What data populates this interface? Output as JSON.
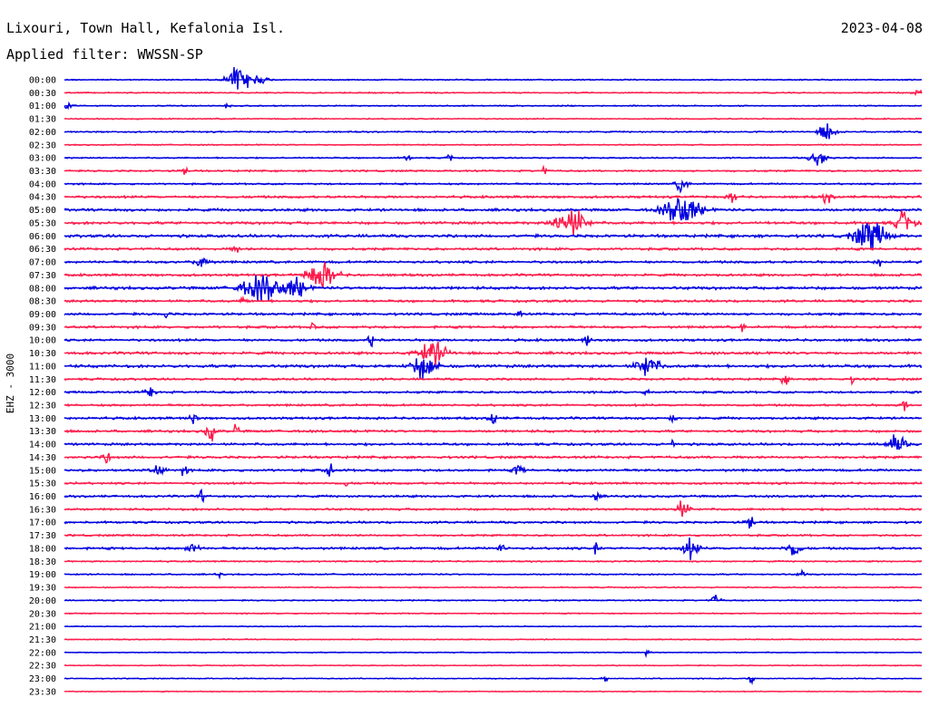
{
  "header": {
    "station": "Lixouri, Town Hall, Kefalonia Isl.",
    "filter": "Applied filter: WWSSN-SP",
    "date": "2023-04-08"
  },
  "chart_data": {
    "type": "line",
    "ylabel": "EHZ - 3000",
    "colors": {
      "even": "#0000e0",
      "odd": "#ff1a4a"
    },
    "rows": [
      {
        "label": "00:00",
        "noise": 0.5,
        "events": [
          [
            0.2,
            10,
            1.5
          ],
          [
            0.215,
            18,
            0.9
          ]
        ]
      },
      {
        "label": "00:30",
        "noise": 0.5,
        "events": [
          [
            0.995,
            6,
            0.3
          ]
        ]
      },
      {
        "label": "01:00",
        "noise": 0.5,
        "events": [
          [
            0.003,
            6,
            0.5
          ],
          [
            0.19,
            3,
            0.5
          ]
        ]
      },
      {
        "label": "01:30",
        "noise": 0.5,
        "events": []
      },
      {
        "label": "02:00",
        "noise": 0.6,
        "events": [
          [
            0.89,
            9,
            1.2
          ]
        ]
      },
      {
        "label": "02:30",
        "noise": 0.5,
        "events": []
      },
      {
        "label": "03:00",
        "noise": 0.6,
        "events": [
          [
            0.4,
            3,
            0.6
          ],
          [
            0.45,
            3,
            0.6
          ],
          [
            0.88,
            9,
            1.2
          ]
        ]
      },
      {
        "label": "03:30",
        "noise": 0.7,
        "events": [
          [
            0.14,
            4,
            0.5
          ],
          [
            0.56,
            3,
            0.5
          ]
        ]
      },
      {
        "label": "04:00",
        "noise": 0.7,
        "events": [
          [
            0.72,
            6,
            1.2
          ]
        ]
      },
      {
        "label": "04:30",
        "noise": 1.0,
        "events": [
          [
            0.78,
            5,
            0.8
          ],
          [
            0.89,
            5,
            0.8
          ]
        ]
      },
      {
        "label": "05:00",
        "noise": 1.1,
        "events": [
          [
            0.72,
            20,
            2.0
          ]
        ]
      },
      {
        "label": "05:30",
        "noise": 1.1,
        "events": [
          [
            0.59,
            16,
            2.2
          ],
          [
            0.98,
            10,
            1.4
          ]
        ]
      },
      {
        "label": "06:00",
        "noise": 1.2,
        "events": [
          [
            0.94,
            18,
            2.0
          ]
        ]
      },
      {
        "label": "06:30",
        "noise": 1.0,
        "events": [
          [
            0.2,
            4,
            0.5
          ]
        ]
      },
      {
        "label": "07:00",
        "noise": 1.0,
        "events": [
          [
            0.16,
            7,
            1.0
          ],
          [
            0.95,
            4,
            0.6
          ]
        ]
      },
      {
        "label": "07:30",
        "noise": 1.0,
        "events": [
          [
            0.3,
            16,
            1.8
          ]
        ]
      },
      {
        "label": "08:00",
        "noise": 1.2,
        "events": [
          [
            0.23,
            22,
            1.8
          ],
          [
            0.27,
            12,
            1.2
          ]
        ]
      },
      {
        "label": "08:30",
        "noise": 1.0,
        "events": [
          [
            0.21,
            3,
            1.2
          ]
        ]
      },
      {
        "label": "09:00",
        "noise": 1.0,
        "events": [
          [
            0.12,
            3,
            0.6
          ],
          [
            0.53,
            3,
            0.5
          ],
          [
            0.7,
            3,
            0.5
          ]
        ]
      },
      {
        "label": "09:30",
        "noise": 1.0,
        "events": [
          [
            0.29,
            3,
            0.6
          ],
          [
            0.79,
            3,
            0.6
          ]
        ]
      },
      {
        "label": "10:00",
        "noise": 1.0,
        "events": [
          [
            0.36,
            5,
            1.0
          ],
          [
            0.61,
            4,
            0.8
          ]
        ]
      },
      {
        "label": "10:30",
        "noise": 1.1,
        "events": [
          [
            0.43,
            16,
            1.5
          ]
        ]
      },
      {
        "label": "11:00",
        "noise": 1.2,
        "events": [
          [
            0.42,
            14,
            1.6
          ],
          [
            0.68,
            12,
            1.5
          ]
        ]
      },
      {
        "label": "11:30",
        "noise": 0.9,
        "events": [
          [
            0.84,
            5,
            0.6
          ],
          [
            0.92,
            3,
            0.5
          ]
        ]
      },
      {
        "label": "12:00",
        "noise": 0.9,
        "events": [
          [
            0.1,
            6,
            0.7
          ],
          [
            0.68,
            3,
            0.5
          ]
        ]
      },
      {
        "label": "12:30",
        "noise": 0.9,
        "events": [
          [
            0.98,
            3,
            0.8
          ]
        ]
      },
      {
        "label": "13:00",
        "noise": 1.0,
        "events": [
          [
            0.15,
            4,
            1.0
          ],
          [
            0.5,
            4,
            1.0
          ],
          [
            0.71,
            3,
            0.6
          ]
        ]
      },
      {
        "label": "13:30",
        "noise": 1.0,
        "events": [
          [
            0.17,
            6,
            1.2
          ],
          [
            0.2,
            3,
            0.9
          ]
        ]
      },
      {
        "label": "14:00",
        "noise": 1.0,
        "events": [
          [
            0.71,
            3,
            0.6
          ],
          [
            0.97,
            10,
            1.2
          ]
        ]
      },
      {
        "label": "14:30",
        "noise": 1.0,
        "events": [
          [
            0.05,
            5,
            0.6
          ]
        ]
      },
      {
        "label": "15:00",
        "noise": 1.0,
        "events": [
          [
            0.11,
            6,
            1.2
          ],
          [
            0.14,
            3,
            1.0
          ],
          [
            0.31,
            4,
            0.8
          ],
          [
            0.53,
            5,
            0.8
          ]
        ]
      },
      {
        "label": "15:30",
        "noise": 0.9,
        "events": [
          [
            0.33,
            3,
            0.5
          ]
        ]
      },
      {
        "label": "16:00",
        "noise": 0.9,
        "events": [
          [
            0.16,
            3,
            0.8
          ],
          [
            0.62,
            4,
            0.6
          ]
        ]
      },
      {
        "label": "16:30",
        "noise": 0.9,
        "events": [
          [
            0.72,
            8,
            1.1
          ]
        ]
      },
      {
        "label": "17:00",
        "noise": 0.9,
        "events": [
          [
            0.8,
            5,
            0.9
          ]
        ]
      },
      {
        "label": "17:30",
        "noise": 0.8,
        "events": []
      },
      {
        "label": "18:00",
        "noise": 1.0,
        "events": [
          [
            0.15,
            6,
            1.0
          ],
          [
            0.51,
            4,
            0.8
          ],
          [
            0.62,
            3,
            0.8
          ],
          [
            0.73,
            9,
            1.2
          ],
          [
            0.85,
            8,
            1.0
          ]
        ]
      },
      {
        "label": "18:30",
        "noise": 0.6,
        "events": []
      },
      {
        "label": "19:00",
        "noise": 0.6,
        "events": [
          [
            0.18,
            3,
            0.5
          ],
          [
            0.86,
            4,
            0.5
          ]
        ]
      },
      {
        "label": "19:30",
        "noise": 0.5,
        "events": []
      },
      {
        "label": "20:00",
        "noise": 0.5,
        "events": [
          [
            0.76,
            5,
            0.8
          ]
        ]
      },
      {
        "label": "20:30",
        "noise": 0.5,
        "events": []
      },
      {
        "label": "21:00",
        "noise": 0.4,
        "events": []
      },
      {
        "label": "21:30",
        "noise": 0.4,
        "events": []
      },
      {
        "label": "22:00",
        "noise": 0.4,
        "events": [
          [
            0.68,
            3,
            0.5
          ]
        ]
      },
      {
        "label": "22:30",
        "noise": 0.4,
        "events": []
      },
      {
        "label": "23:00",
        "noise": 0.4,
        "events": [
          [
            0.63,
            3,
            0.5
          ],
          [
            0.8,
            4,
            0.6
          ]
        ]
      },
      {
        "label": "23:30",
        "noise": 0.4,
        "events": []
      }
    ]
  }
}
